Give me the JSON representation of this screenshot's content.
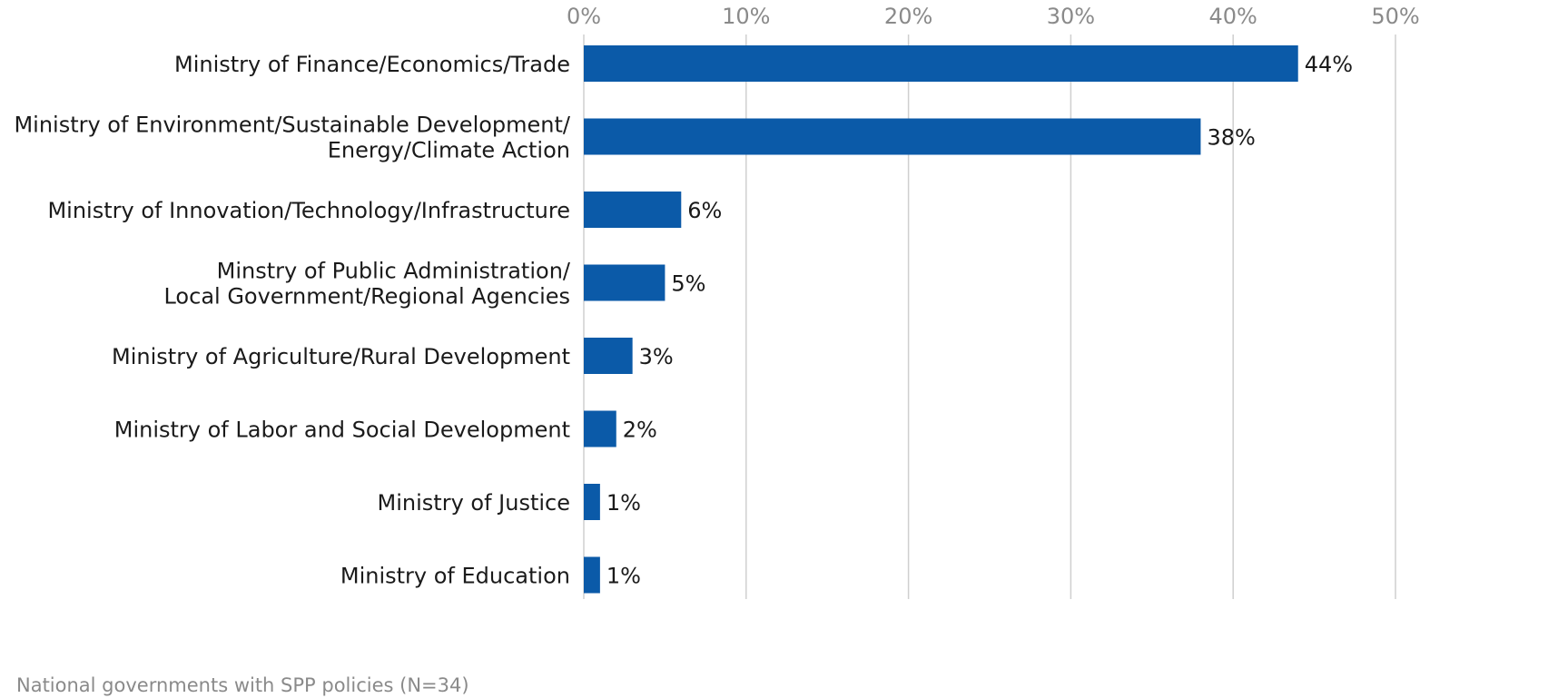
{
  "chart_data": {
    "type": "bar",
    "orientation": "horizontal",
    "categories": [
      [
        "Ministry of Finance/Economics/Trade"
      ],
      [
        "Ministry of Environment/Sustainable Development/",
        "Energy/Climate Action"
      ],
      [
        "Ministry of Innovation/Technology/Infrastructure"
      ],
      [
        "Minstry of Public Administration/",
        "Local Government/Regional Agencies"
      ],
      [
        "Ministry of Agriculture/Rural Development"
      ],
      [
        "Ministry of Labor and Social Development"
      ],
      [
        "Ministry of Justice"
      ],
      [
        "Ministry of Education"
      ]
    ],
    "values": [
      44,
      38,
      6,
      5,
      3,
      2,
      1,
      1
    ],
    "value_labels": [
      "44%",
      "38%",
      "6%",
      "5%",
      "3%",
      "2%",
      "1%",
      "1%"
    ],
    "xlim": [
      0,
      50
    ],
    "x_ticks": [
      0,
      10,
      20,
      30,
      40,
      50
    ],
    "x_tick_labels": [
      "0%",
      "10%",
      "20%",
      "30%",
      "40%",
      "50%"
    ],
    "x_axis_position": "top",
    "grid": true,
    "bar_color": "#0b5aa8",
    "grid_color": "#cfcfcf",
    "footnote": "National governments with SPP policies (N=34)"
  }
}
